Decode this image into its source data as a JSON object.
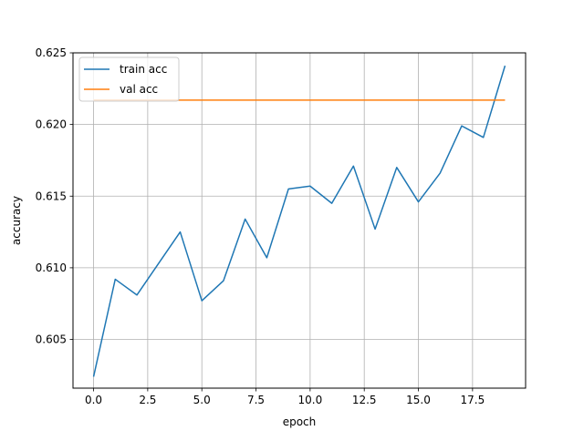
{
  "chart_data": {
    "type": "line",
    "xlabel": "epoch",
    "ylabel": "accuracy",
    "xlim": [
      -0.95,
      19.95
    ],
    "ylim": [
      0.6016,
      0.625
    ],
    "xticks": [
      0.0,
      2.5,
      5.0,
      7.5,
      10.0,
      12.5,
      15.0,
      17.5
    ],
    "xtick_labels": [
      "0.0",
      "2.5",
      "5.0",
      "7.5",
      "10.0",
      "12.5",
      "15.0",
      "17.5"
    ],
    "yticks": [
      0.605,
      0.61,
      0.615,
      0.62,
      0.625
    ],
    "ytick_labels": [
      "0.605",
      "0.610",
      "0.615",
      "0.620",
      "0.625"
    ],
    "grid": true,
    "legend_position": "top-left",
    "x": [
      0,
      1,
      2,
      3,
      4,
      5,
      6,
      7,
      8,
      9,
      10,
      11,
      12,
      13,
      14,
      15,
      16,
      17,
      18,
      19
    ],
    "series": [
      {
        "name": "train acc",
        "color": "#1f77b4",
        "values": [
          0.6024,
          0.6092,
          0.6081,
          0.6103,
          0.6125,
          0.6077,
          0.6091,
          0.6134,
          0.6107,
          0.6155,
          0.6157,
          0.6145,
          0.6171,
          0.6127,
          0.617,
          0.6146,
          0.6166,
          0.6199,
          0.6191,
          0.6241
        ]
      },
      {
        "name": "val acc",
        "color": "#ff7f0e",
        "values": [
          0.6217,
          0.6217,
          0.6217,
          0.6217,
          0.6217,
          0.6217,
          0.6217,
          0.6217,
          0.6217,
          0.6217,
          0.6217,
          0.6217,
          0.6217,
          0.6217,
          0.6217,
          0.6217,
          0.6217,
          0.6217,
          0.6217,
          0.6217
        ]
      }
    ]
  }
}
